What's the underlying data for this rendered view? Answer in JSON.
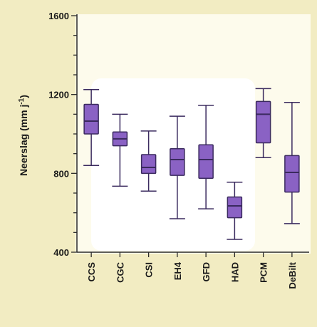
{
  "colors": {
    "page_background": "#f2ecc2",
    "plot_background": "#fdfbec",
    "inner_highlight": "#ffffff",
    "box_fill": "#8a62c4",
    "box_stroke": "#3a2a5e",
    "axis": "#2a2a2a"
  },
  "chart_data": {
    "type": "box",
    "title": "",
    "xlabel": "",
    "ylabel": "Neerslag (mm j⁻¹)",
    "ylabel_main": "Neerslag (mm j",
    "ylabel_exp": "-1",
    "ylabel_end": ")",
    "ylim": [
      400,
      1600
    ],
    "yticks": [
      400,
      800,
      1200,
      1600
    ],
    "yticks_labeled": [
      "400",
      "800",
      "1200",
      "1600"
    ],
    "grid": false,
    "categories": [
      "CCS",
      "CGC",
      "CSI",
      "EH4",
      "GFD",
      "HAD",
      "PCM",
      "DeBilt"
    ],
    "boxes": [
      {
        "category": "CCS",
        "whisker_low": 840,
        "q1": 1000,
        "median": 1065,
        "q3": 1150,
        "whisker_high": 1225
      },
      {
        "category": "CGC",
        "whisker_low": 735,
        "q1": 940,
        "median": 975,
        "q3": 1010,
        "whisker_high": 1100
      },
      {
        "category": "CSI",
        "whisker_low": 710,
        "q1": 800,
        "median": 830,
        "q3": 895,
        "whisker_high": 1015
      },
      {
        "category": "EH4",
        "whisker_low": 570,
        "q1": 790,
        "median": 870,
        "q3": 925,
        "whisker_high": 1090
      },
      {
        "category": "GFD",
        "whisker_low": 620,
        "q1": 775,
        "median": 870,
        "q3": 945,
        "whisker_high": 1145
      },
      {
        "category": "HAD",
        "whisker_low": 465,
        "q1": 575,
        "median": 635,
        "q3": 680,
        "whisker_high": 755
      },
      {
        "category": "PCM",
        "whisker_low": 880,
        "q1": 955,
        "median": 1100,
        "q3": 1165,
        "whisker_high": 1230
      },
      {
        "category": "DeBilt",
        "whisker_low": 545,
        "q1": 705,
        "median": 805,
        "q3": 890,
        "whisker_high": 1160
      }
    ]
  }
}
